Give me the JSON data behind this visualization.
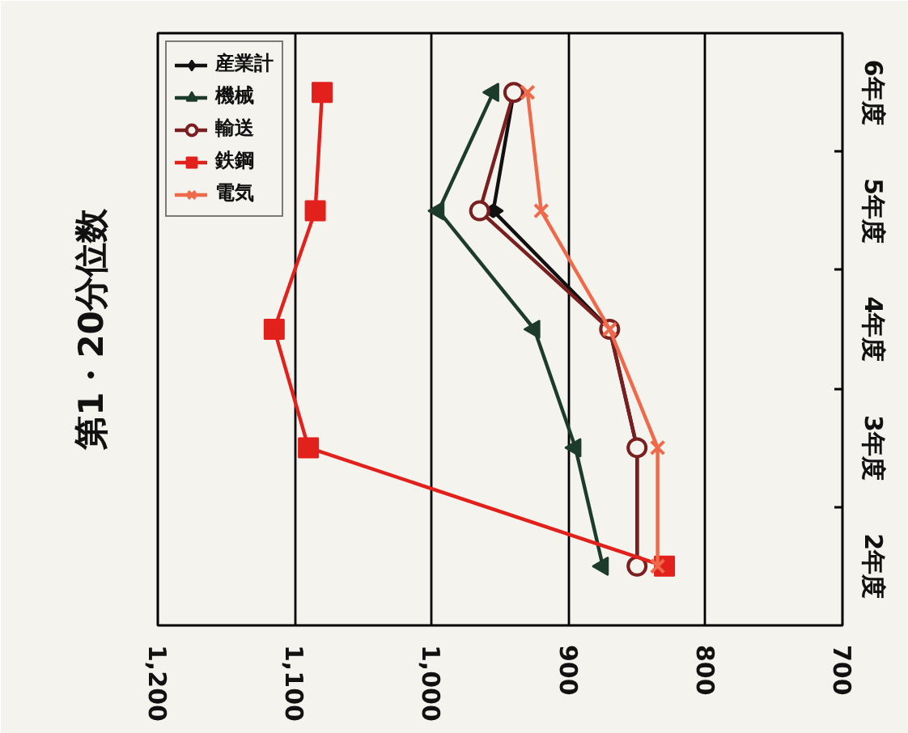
{
  "chart_data": {
    "type": "line",
    "title": "第1・20分位数",
    "orientation": "horizontal",
    "categories": [
      "6年度",
      "5年度",
      "4年度",
      "3年度",
      "2年度"
    ],
    "series": [
      {
        "name": "産業計",
        "color": "#111111",
        "marker": "diamond",
        "values": [
          940,
          955,
          870,
          850,
          850
        ]
      },
      {
        "name": "機械",
        "color": "#1d3b2b",
        "marker": "triangle",
        "values": [
          955,
          995,
          925,
          895,
          875
        ]
      },
      {
        "name": "輸送",
        "color": "#7a1f1f",
        "marker": "circle",
        "values": [
          940,
          965,
          870,
          850,
          850
        ]
      },
      {
        "name": "鉄鋼",
        "color": "#e3211c",
        "marker": "square",
        "values": [
          1080,
          1085,
          1115,
          1090,
          830
        ]
      },
      {
        "name": "電気",
        "color": "#ee6a4a",
        "marker": "cross",
        "values": [
          930,
          920,
          870,
          835,
          835
        ]
      }
    ],
    "xlim": [
      1200,
      700
    ],
    "xticks": [
      {
        "value": 1200,
        "label": "1,200"
      },
      {
        "value": 1100,
        "label": "1,100"
      },
      {
        "value": 1000,
        "label": "1,000"
      },
      900,
      800,
      700
    ],
    "grid": "x",
    "legend": "top left"
  }
}
